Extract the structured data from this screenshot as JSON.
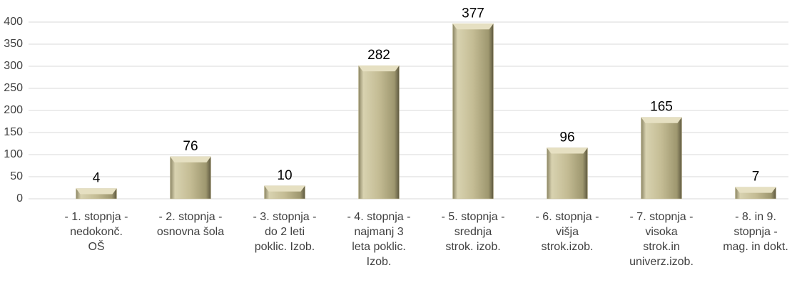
{
  "chart_data": {
    "type": "bar",
    "categories": [
      "- 1. stopnja -\nnedokonč.\nOŠ",
      "- 2. stopnja -\nosnovna šola",
      "- 3. stopnja -\ndo 2 leti\npoklic. Izob.",
      "- 4. stopnja -\nnajmanj 3\nleta poklic.\nIzob.",
      "- 5. stopnja -\nsrednja\nstrok. izob.",
      "- 6. stopnja -\nvišja\nstrok.izob.",
      "- 7. stopnja -\nvisoka\nstrok.in\nuniverz.izob.",
      "- 8. in 9.\nstopnja -\nmag. in dokt."
    ],
    "values": [
      4,
      76,
      10,
      282,
      377,
      96,
      165,
      7
    ],
    "color": "#c4bc94",
    "ylim": [
      0,
      400
    ],
    "yticks": [
      0,
      50,
      100,
      150,
      200,
      250,
      300,
      350,
      400
    ],
    "grid": true
  }
}
